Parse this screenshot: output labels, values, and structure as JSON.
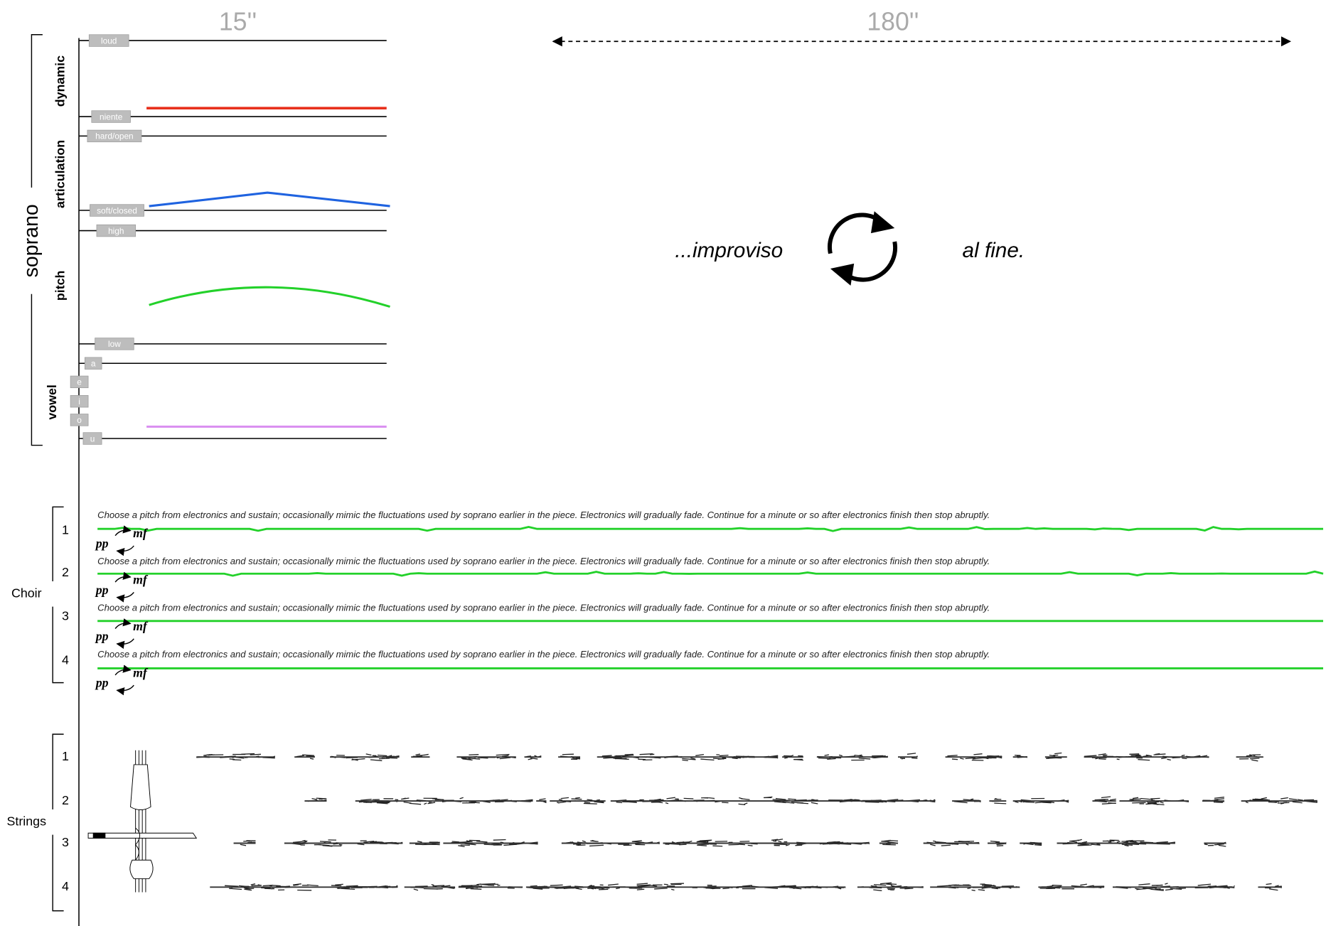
{
  "timing": {
    "section_1": "15''",
    "section_2": "180''"
  },
  "soprano": {
    "label": "soprano",
    "params": [
      {
        "name": "dynamic",
        "levels": [
          "loud",
          "niente"
        ]
      },
      {
        "name": "articulation",
        "levels": [
          "hard/open",
          "soft/closed"
        ]
      },
      {
        "name": "pitch",
        "levels": [
          "high",
          "low"
        ]
      },
      {
        "name": "vowel",
        "levels": [
          "a",
          "e",
          "i",
          "o",
          "u"
        ]
      }
    ]
  },
  "improv": {
    "start": "...improviso",
    "end": "al fine."
  },
  "choir": {
    "label": "Choir",
    "voices": [
      {
        "number": "1",
        "instruction": "Choose a pitch from electronics and sustain; occasionally mimic the fluctuations used by soprano earlier in the piece. Electronics will gradually fade. Continue for a minute or so after electronics finish then stop abruptly.",
        "dynamic_low": "pp",
        "dynamic_high": "mf"
      },
      {
        "number": "2",
        "instruction": "Choose a pitch from electronics and sustain; occasionally mimic the fluctuations used by soprano earlier in the piece. Electronics will gradually fade. Continue for a minute or so after electronics finish then stop abruptly.",
        "dynamic_low": "pp",
        "dynamic_high": "mf"
      },
      {
        "number": "3",
        "instruction": "Choose a pitch from electronics and sustain; occasionally mimic the fluctuations used by soprano earlier in the piece. Electronics will gradually fade. Continue for a minute or so after electronics finish then stop abruptly.",
        "dynamic_low": "pp",
        "dynamic_high": "mf"
      },
      {
        "number": "4",
        "instruction": "Choose a pitch from electronics and sustain; occasionally mimic the fluctuations used by soprano earlier in the piece. Electronics will gradually fade. Continue for a minute or so after electronics finish then stop abruptly.",
        "dynamic_low": "pp",
        "dynamic_high": "mf"
      }
    ]
  },
  "strings": {
    "label": "Strings",
    "numbers": [
      "1",
      "2",
      "3",
      "4"
    ]
  }
}
